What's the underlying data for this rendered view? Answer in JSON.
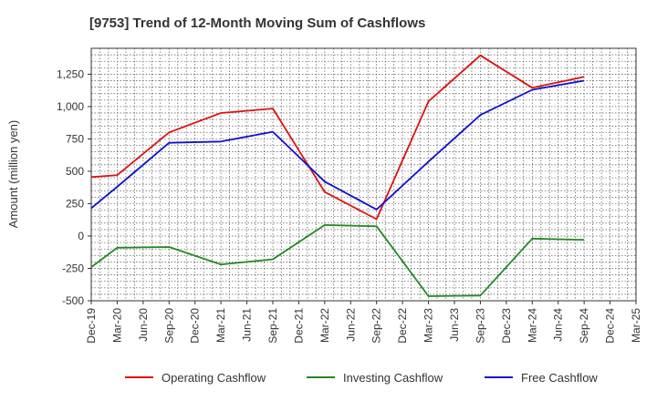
{
  "chart_data": {
    "type": "line",
    "title": "[9753]  Trend of 12-Month Moving Sum of Cashflows",
    "ylabel": "Amount (million yen)",
    "xlabel": "",
    "categories": [
      "Dec-19",
      "Mar-20",
      "Jun-20",
      "Sep-20",
      "Dec-20",
      "Mar-21",
      "Jun-21",
      "Sep-21",
      "Dec-21",
      "Mar-22",
      "Jun-22",
      "Sep-22",
      "Dec-22",
      "Mar-23",
      "Jun-23",
      "Sep-23",
      "Dec-23",
      "Mar-24",
      "Jun-24",
      "Sep-24",
      "Dec-24",
      "Mar-25"
    ],
    "ylim": [
      -500,
      1450
    ],
    "yticks": [
      -500,
      -250,
      0,
      250,
      500,
      750,
      1000,
      1250
    ],
    "ytick_labels": [
      "-500",
      "-250",
      "0",
      "250",
      "500",
      "750",
      "1,000",
      "1,250"
    ],
    "grid": true,
    "legend_position": "bottom",
    "series": [
      {
        "name": "Operating Cashflow",
        "color": "#dd1111",
        "points": [
          {
            "x": "Dec-19",
            "y": 455
          },
          {
            "x": "Mar-20",
            "y": 470
          },
          {
            "x": "Sep-20",
            "y": 800
          },
          {
            "x": "Mar-21",
            "y": 950
          },
          {
            "x": "Sep-21",
            "y": 985
          },
          {
            "x": "Mar-22",
            "y": 340
          },
          {
            "x": "Sep-22",
            "y": 130
          },
          {
            "x": "Mar-23",
            "y": 1040
          },
          {
            "x": "Sep-23",
            "y": 1395
          },
          {
            "x": "Mar-24",
            "y": 1145
          },
          {
            "x": "Sep-24",
            "y": 1230
          }
        ]
      },
      {
        "name": "Investing Cashflow",
        "color": "#228822",
        "points": [
          {
            "x": "Dec-19",
            "y": -240
          },
          {
            "x": "Mar-20",
            "y": -90
          },
          {
            "x": "Sep-20",
            "y": -85
          },
          {
            "x": "Mar-21",
            "y": -220
          },
          {
            "x": "Sep-21",
            "y": -180
          },
          {
            "x": "Mar-22",
            "y": 85
          },
          {
            "x": "Sep-22",
            "y": 75
          },
          {
            "x": "Mar-23",
            "y": -465
          },
          {
            "x": "Sep-23",
            "y": -460
          },
          {
            "x": "Mar-24",
            "y": -20
          },
          {
            "x": "Sep-24",
            "y": -30
          }
        ]
      },
      {
        "name": "Free Cashflow",
        "color": "#1111cc",
        "points": [
          {
            "x": "Dec-19",
            "y": 215
          },
          {
            "x": "Mar-20",
            "y": 380
          },
          {
            "x": "Sep-20",
            "y": 720
          },
          {
            "x": "Mar-21",
            "y": 730
          },
          {
            "x": "Sep-21",
            "y": 805
          },
          {
            "x": "Mar-22",
            "y": 420
          },
          {
            "x": "Sep-22",
            "y": 205
          },
          {
            "x": "Mar-23",
            "y": 575
          },
          {
            "x": "Sep-23",
            "y": 935
          },
          {
            "x": "Mar-24",
            "y": 1130
          },
          {
            "x": "Sep-24",
            "y": 1200
          }
        ]
      }
    ]
  }
}
